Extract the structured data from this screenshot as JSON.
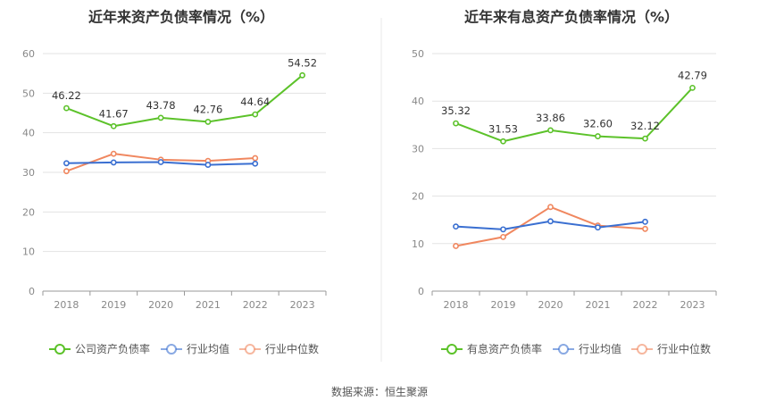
{
  "source_text": "数据来源：恒生聚源",
  "colors": {
    "company": "#5cc22a",
    "industry_avg": "#3a6fd1",
    "industry_median": "#f0875f",
    "grid": "#e3e3e3",
    "axis": "#999999"
  },
  "chart_data": [
    {
      "type": "line",
      "title": "近年来资产负债率情况（%）",
      "categories": [
        "2018",
        "2019",
        "2020",
        "2021",
        "2022",
        "2023"
      ],
      "ylim": [
        0,
        60
      ],
      "yticks": [
        0,
        10,
        20,
        30,
        40,
        50,
        60
      ],
      "grid": true,
      "legend_position": "bottom",
      "series": [
        {
          "name": "公司资产负债率",
          "values": [
            46.22,
            41.67,
            43.78,
            42.76,
            44.64,
            54.52
          ],
          "labels": true,
          "color_key": "company"
        },
        {
          "name": "行业均值",
          "values": [
            32.3,
            32.5,
            32.6,
            31.9,
            32.2,
            null
          ],
          "labels": false,
          "color_key": "industry_avg"
        },
        {
          "name": "行业中位数",
          "values": [
            30.3,
            34.7,
            33.2,
            32.9,
            33.6,
            null
          ],
          "labels": false,
          "color_key": "industry_median"
        }
      ]
    },
    {
      "type": "line",
      "title": "近年来有息资产负债率情况（%）",
      "categories": [
        "2018",
        "2019",
        "2020",
        "2021",
        "2022",
        "2023"
      ],
      "ylim": [
        0,
        50
      ],
      "yticks": [
        0,
        10,
        20,
        30,
        40,
        50
      ],
      "grid": true,
      "legend_position": "bottom",
      "series": [
        {
          "name": "有息资产负债率",
          "values": [
            35.32,
            31.53,
            33.86,
            32.6,
            32.12,
            42.79
          ],
          "labels": true,
          "color_key": "company"
        },
        {
          "name": "行业均值",
          "values": [
            13.6,
            13.0,
            14.7,
            13.4,
            14.6,
            null
          ],
          "labels": false,
          "color_key": "industry_avg"
        },
        {
          "name": "行业中位数",
          "values": [
            9.5,
            11.4,
            17.7,
            13.8,
            13.1,
            null
          ],
          "labels": false,
          "color_key": "industry_median"
        }
      ]
    }
  ]
}
